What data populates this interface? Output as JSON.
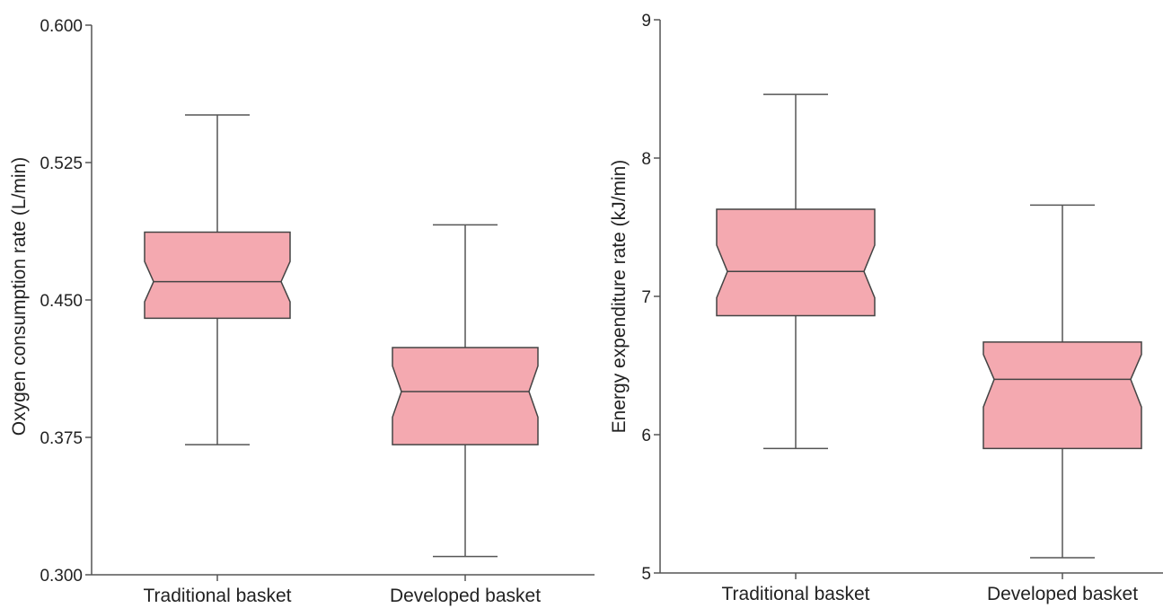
{
  "colors": {
    "box_fill": "#f4a9b0",
    "box_stroke": "#444444",
    "axis": "#555555",
    "whisker": "#555555",
    "background": "#ffffff"
  },
  "chart_data": [
    {
      "type": "boxplot",
      "notched": true,
      "title": "",
      "xlabel": "",
      "ylabel": "Oxygen  consumption  rate (L/min)",
      "ylim": [
        0.3,
        0.6
      ],
      "yticks": [
        "0.300",
        "0.375",
        "0.450",
        "0.525",
        "0.600"
      ],
      "grid": false,
      "categories": [
        "Traditional basket",
        "Developed  basket"
      ],
      "boxes": [
        {
          "whisker_low": 0.371,
          "q1": 0.44,
          "notch_low": 0.449,
          "median": 0.46,
          "notch_high": 0.471,
          "q3": 0.487,
          "whisker_high": 0.551
        },
        {
          "whisker_low": 0.31,
          "q1": 0.371,
          "notch_low": 0.386,
          "median": 0.4,
          "notch_high": 0.414,
          "q3": 0.424,
          "whisker_high": 0.491
        }
      ]
    },
    {
      "type": "boxplot",
      "notched": true,
      "title": "",
      "xlabel": "",
      "ylabel": "Energy  expenditure  rate (kJ/min)",
      "ylim": [
        5,
        9
      ],
      "yticks": [
        "5",
        "6",
        "7",
        "8",
        "9"
      ],
      "grid": false,
      "categories": [
        "Traditional  basket",
        "Developed  basket"
      ],
      "boxes": [
        {
          "whisker_low": 5.9,
          "q1": 6.86,
          "notch_low": 6.99,
          "median": 7.18,
          "notch_high": 7.37,
          "q3": 7.63,
          "whisker_high": 8.46
        },
        {
          "whisker_low": 5.11,
          "q1": 5.9,
          "notch_low": 6.2,
          "median": 6.4,
          "notch_high": 6.58,
          "q3": 6.67,
          "whisker_high": 7.66
        }
      ]
    }
  ]
}
